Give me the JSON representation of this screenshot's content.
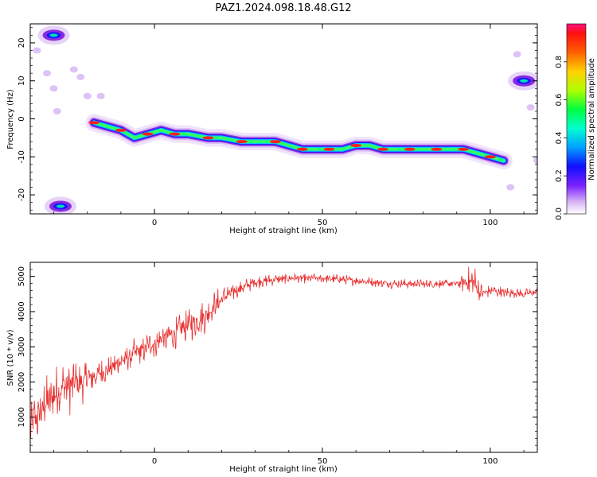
{
  "title": "PAZ1.2024.098.18.48.G12",
  "chart_data": [
    {
      "type": "heatmap",
      "xlabel": "Height of straight line (km)",
      "ylabel": "Frequency (Hz)",
      "xlim": [
        -37,
        114
      ],
      "ylim": [
        -25,
        25
      ],
      "xticks": [
        0,
        50,
        100
      ],
      "yticks": [
        -20,
        -10,
        0,
        10,
        20
      ],
      "colorbar": {
        "label": "Normalized spectral amplitude",
        "range": [
          0,
          1
        ],
        "ticks": [
          "0.0",
          "0.2",
          "0.4",
          "0.6",
          "0.8"
        ],
        "colormap": "rainbow"
      },
      "ridge": [
        {
          "x": -18,
          "y": -1
        },
        {
          "x": -14,
          "y": -2
        },
        {
          "x": -10,
          "y": -3
        },
        {
          "x": -6,
          "y": -5
        },
        {
          "x": -2,
          "y": -4
        },
        {
          "x": 2,
          "y": -3
        },
        {
          "x": 6,
          "y": -4
        },
        {
          "x": 10,
          "y": -4
        },
        {
          "x": 16,
          "y": -5
        },
        {
          "x": 20,
          "y": -5
        },
        {
          "x": 26,
          "y": -6
        },
        {
          "x": 30,
          "y": -6
        },
        {
          "x": 36,
          "y": -6
        },
        {
          "x": 40,
          "y": -7
        },
        {
          "x": 44,
          "y": -8
        },
        {
          "x": 48,
          "y": -8
        },
        {
          "x": 52,
          "y": -8
        },
        {
          "x": 56,
          "y": -8
        },
        {
          "x": 60,
          "y": -7
        },
        {
          "x": 64,
          "y": -7
        },
        {
          "x": 68,
          "y": -8
        },
        {
          "x": 72,
          "y": -8
        },
        {
          "x": 76,
          "y": -8
        },
        {
          "x": 80,
          "y": -8
        },
        {
          "x": 84,
          "y": -8
        },
        {
          "x": 88,
          "y": -8
        },
        {
          "x": 92,
          "y": -8
        },
        {
          "x": 96,
          "y": -9
        },
        {
          "x": 100,
          "y": -10
        },
        {
          "x": 104,
          "y": -11
        }
      ],
      "side_features": [
        {
          "x": 110,
          "y": 10
        },
        {
          "x": -30,
          "y": 22
        },
        {
          "x": -28,
          "y": -23
        }
      ]
    },
    {
      "type": "line",
      "xlabel": "Height of straight line (km)",
      "ylabel": "SNR (10 * v/v)",
      "xlim": [
        -37,
        114
      ],
      "ylim": [
        0,
        5400
      ],
      "xticks": [
        0,
        50,
        100
      ],
      "yticks": [
        1000,
        2000,
        3000,
        4000,
        5000
      ],
      "color": "#e83030",
      "trend": [
        {
          "x": -37,
          "y": 700
        },
        {
          "x": -33,
          "y": 1300
        },
        {
          "x": -28,
          "y": 1800
        },
        {
          "x": -22,
          "y": 2000
        },
        {
          "x": -15,
          "y": 2300
        },
        {
          "x": -8,
          "y": 2700
        },
        {
          "x": 0,
          "y": 3100
        },
        {
          "x": 8,
          "y": 3500
        },
        {
          "x": 15,
          "y": 3900
        },
        {
          "x": 22,
          "y": 4500
        },
        {
          "x": 30,
          "y": 4850
        },
        {
          "x": 40,
          "y": 4950
        },
        {
          "x": 50,
          "y": 4950
        },
        {
          "x": 60,
          "y": 4880
        },
        {
          "x": 70,
          "y": 4800
        },
        {
          "x": 80,
          "y": 4780
        },
        {
          "x": 90,
          "y": 4800
        },
        {
          "x": 95,
          "y": 4850
        },
        {
          "x": 97,
          "y": 4500
        },
        {
          "x": 100,
          "y": 4600
        },
        {
          "x": 110,
          "y": 4500
        },
        {
          "x": 114,
          "y": 4550
        }
      ],
      "noise_amplitude": [
        {
          "x": -37,
          "y": 900
        },
        {
          "x": -25,
          "y": 900
        },
        {
          "x": -15,
          "y": 400
        },
        {
          "x": 0,
          "y": 500
        },
        {
          "x": 15,
          "y": 600
        },
        {
          "x": 25,
          "y": 250
        },
        {
          "x": 40,
          "y": 150
        },
        {
          "x": 90,
          "y": 150
        },
        {
          "x": 95,
          "y": 600
        },
        {
          "x": 99,
          "y": 200
        },
        {
          "x": 114,
          "y": 150
        }
      ]
    }
  ]
}
